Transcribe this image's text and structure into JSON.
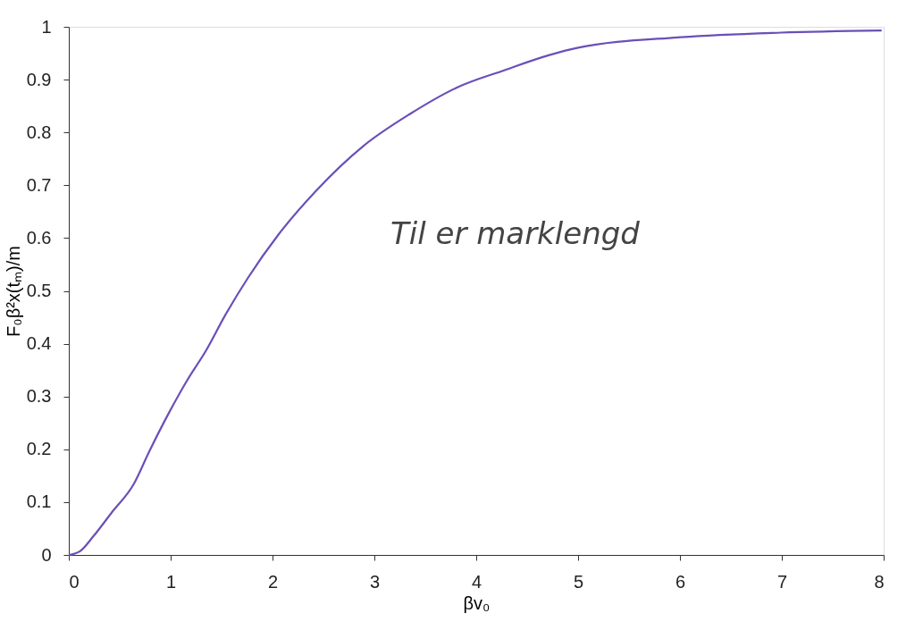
{
  "chart_data": {
    "type": "line",
    "xlabel": "βv₀",
    "ylabel": "F₀β²x(tₘ)/m",
    "x": [
      0,
      0.11,
      0.24,
      0.42,
      0.64,
      0.79,
      0.98,
      1.16,
      1.35,
      1.53,
      1.76,
      2.06,
      2.43,
      2.89,
      3.35,
      3.81,
      4.28,
      4.71,
      4.99,
      5.98,
      6.99,
      7.98
    ],
    "series": [
      {
        "color": "#6b4fb8",
        "values": [
          0,
          0.007,
          0.035,
          0.08,
          0.135,
          0.196,
          0.268,
          0.33,
          0.388,
          0.452,
          0.525,
          0.607,
          0.69,
          0.774,
          0.835,
          0.885,
          0.918,
          0.946,
          0.96,
          0.98,
          0.989,
          0.993
        ]
      }
    ],
    "xlim": [
      0,
      8
    ],
    "xticks": [
      0,
      1,
      2,
      3,
      4,
      5,
      6,
      7,
      8
    ],
    "ylim": [
      0,
      1
    ],
    "yticks": [
      0,
      0.1,
      0.2,
      0.3,
      0.4,
      0.5,
      0.6,
      0.7,
      0.8,
      0.9,
      1
    ],
    "grid": false,
    "marker": "none",
    "line_style": "solid",
    "annotations": [
      "Til er marklengd"
    ]
  }
}
